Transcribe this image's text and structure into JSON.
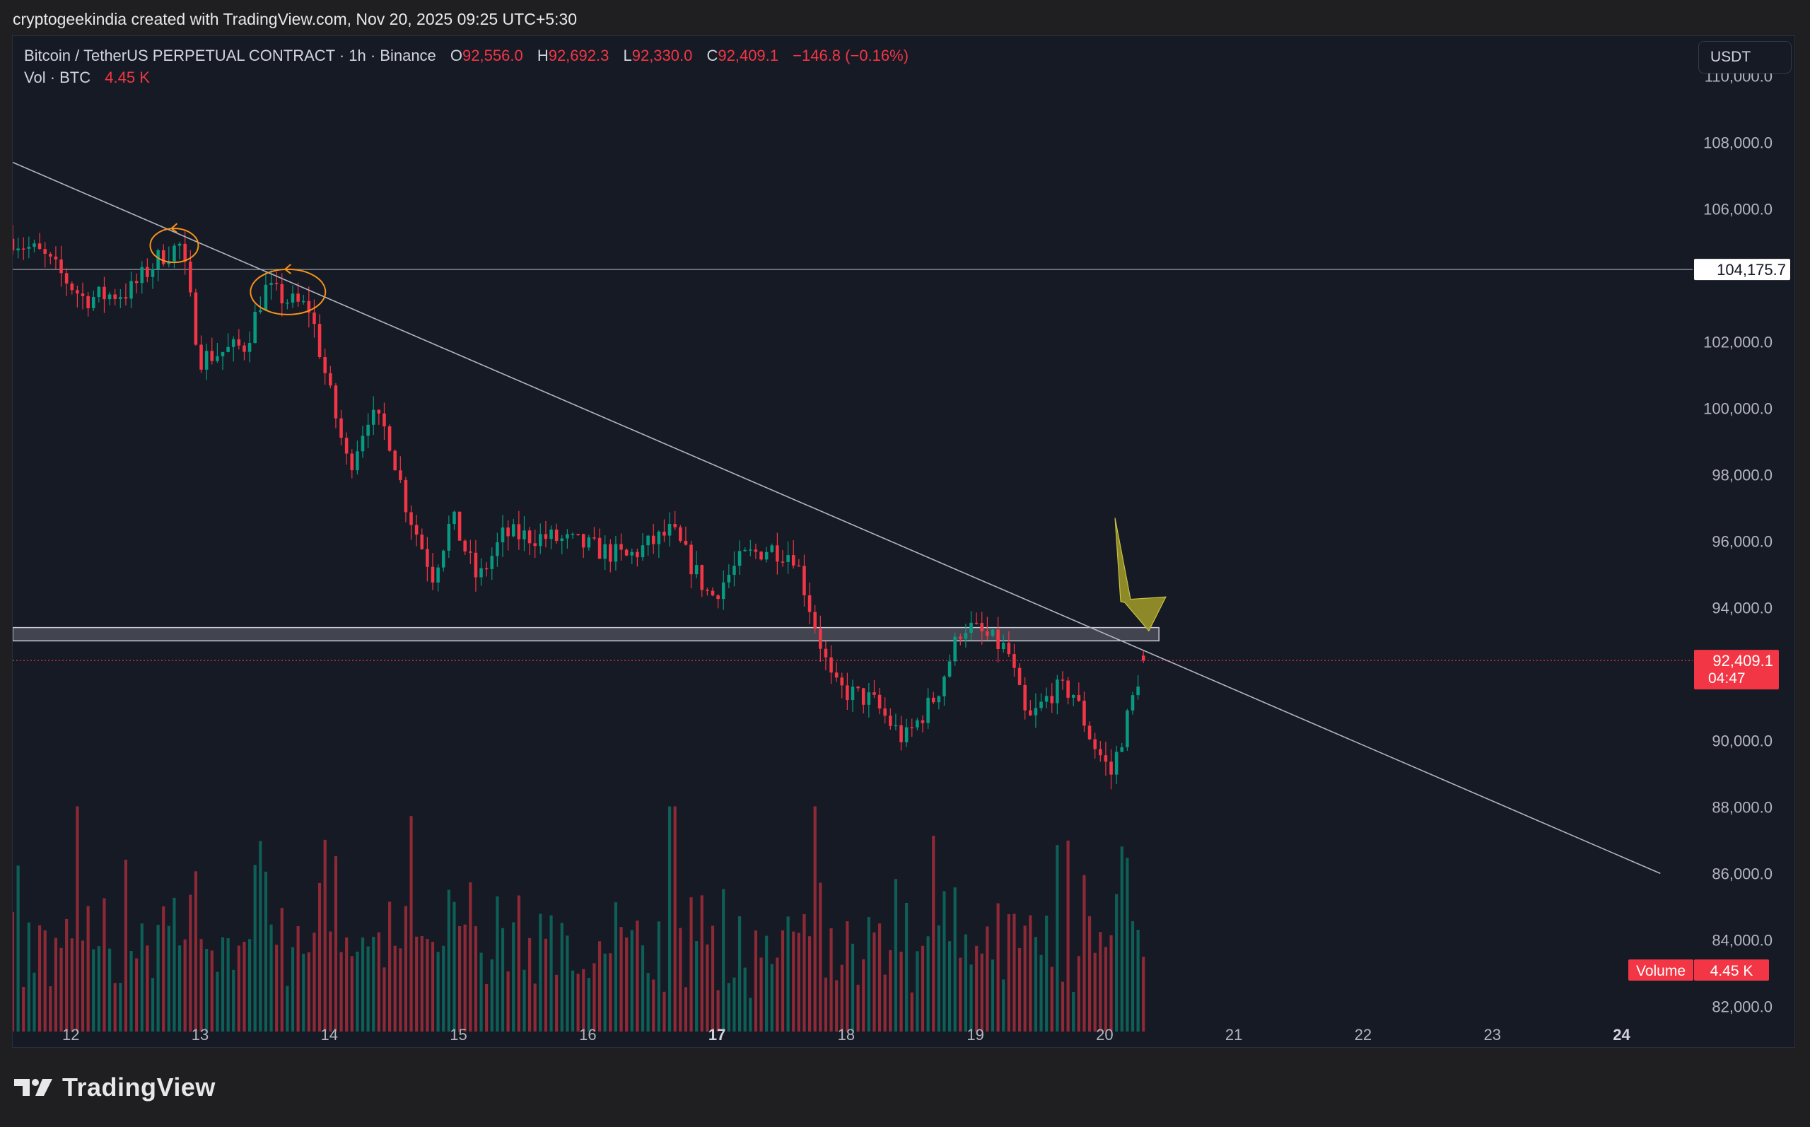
{
  "attribution": "cryptogeekindia created with TradingView.com, Nov 20, 2025 09:25 UTC+5:30",
  "legend": {
    "symbol": "Bitcoin / TetherUS PERPETUAL CONTRACT · 1h · Binance",
    "open_label": "O",
    "open": "92,556.0",
    "high_label": "H",
    "high": "92,692.3",
    "low_label": "L",
    "low": "92,330.0",
    "close_label": "C",
    "close": "92,409.1",
    "change": "−146.8 (−0.16%)",
    "vol_label": "Vol · BTC",
    "vol_value": "4.45 K"
  },
  "currency_button": "USDT",
  "footer": {
    "brand": "TradingView",
    "logo_icon": "tradingview-logo-icon"
  },
  "colors": {
    "background": "#161a25",
    "up": "#089981",
    "down": "#f23645",
    "annotation": "#f7931a",
    "arrow": "#9a962a",
    "line": "#b2b5be"
  },
  "chart_data": {
    "type": "candlestick",
    "timeframe": "1h",
    "xlim_days": [
      11.55,
      24.55
    ],
    "ylim": [
      81200,
      111200
    ],
    "y_ticks": [
      {
        "value": 110000,
        "label": "110,000.0"
      },
      {
        "value": 108000,
        "label": "108,000.0"
      },
      {
        "value": 106000,
        "label": "106,000.0"
      },
      {
        "value": 102000,
        "label": "102,000.0"
      },
      {
        "value": 100000,
        "label": "100,000.0"
      },
      {
        "value": 98000,
        "label": "98,000.0"
      },
      {
        "value": 96000,
        "label": "96,000.0"
      },
      {
        "value": 94000,
        "label": "94,000.0"
      },
      {
        "value": 90000,
        "label": "90,000.0"
      },
      {
        "value": 88000,
        "label": "88,000.0"
      },
      {
        "value": 86000,
        "label": "86,000.0"
      },
      {
        "value": 84000,
        "label": "84,000.0"
      },
      {
        "value": 82000,
        "label": "82,000.0"
      }
    ],
    "x_ticks": [
      {
        "value": 12,
        "label": "12",
        "bold": false
      },
      {
        "value": 13,
        "label": "13",
        "bold": false
      },
      {
        "value": 14,
        "label": "14",
        "bold": false
      },
      {
        "value": 15,
        "label": "15",
        "bold": false
      },
      {
        "value": 16,
        "label": "16",
        "bold": false
      },
      {
        "value": 17,
        "label": "17",
        "bold": true
      },
      {
        "value": 18,
        "label": "18",
        "bold": false
      },
      {
        "value": 19,
        "label": "19",
        "bold": false
      },
      {
        "value": 20,
        "label": "20",
        "bold": false
      },
      {
        "value": 21,
        "label": "21",
        "bold": false
      },
      {
        "value": 22,
        "label": "22",
        "bold": false
      },
      {
        "value": 23,
        "label": "23",
        "bold": false
      },
      {
        "value": 24,
        "label": "24",
        "bold": true
      }
    ],
    "anchor_path": [
      [
        11.55,
        105100
      ],
      [
        11.78,
        104600
      ],
      [
        12.1,
        103300
      ],
      [
        12.45,
        103500
      ],
      [
        12.7,
        104600
      ],
      [
        12.85,
        104900
      ],
      [
        13.0,
        101500
      ],
      [
        13.35,
        101900
      ],
      [
        13.5,
        103600
      ],
      [
        13.7,
        103200
      ],
      [
        13.85,
        103000
      ],
      [
        14.0,
        100500
      ],
      [
        14.15,
        98200
      ],
      [
        14.3,
        99800
      ],
      [
        14.45,
        99300
      ],
      [
        14.6,
        97000
      ],
      [
        14.8,
        95000
      ],
      [
        14.95,
        96700
      ],
      [
        15.15,
        94800
      ],
      [
        15.35,
        96200
      ],
      [
        15.7,
        96100
      ],
      [
        15.95,
        95900
      ],
      [
        16.3,
        95500
      ],
      [
        16.65,
        96300
      ],
      [
        16.95,
        94300
      ],
      [
        17.2,
        95500
      ],
      [
        17.4,
        95800
      ],
      [
        17.6,
        95600
      ],
      [
        17.9,
        91600
      ],
      [
        18.2,
        91200
      ],
      [
        18.45,
        90000
      ],
      [
        18.7,
        91400
      ],
      [
        18.9,
        93500
      ],
      [
        19.05,
        93200
      ],
      [
        19.25,
        92700
      ],
      [
        19.4,
        90500
      ],
      [
        19.6,
        91500
      ],
      [
        19.75,
        91500
      ],
      [
        19.9,
        90000
      ],
      [
        20.05,
        89000
      ],
      [
        20.2,
        91000
      ],
      [
        20.3,
        92500
      ]
    ],
    "volume_scale_max_k": 13.8,
    "last_volume_k": 4.45,
    "horizontal_line": {
      "price": 104175.7,
      "label": "104,175.7"
    },
    "support_zone": {
      "from": 93000,
      "to": 93400,
      "x_end_day": 20.42
    },
    "trendline": {
      "from": {
        "day": 11.55,
        "price": 107400
      },
      "to": {
        "day": 24.3,
        "price": 86000
      }
    },
    "current_price": {
      "value": 92409.1,
      "label": "92,409.1",
      "countdown": "04:47"
    },
    "volume_badge": {
      "label": "Volume",
      "value": "4.45 K"
    },
    "annotations": [
      {
        "type": "ellipse",
        "day": 12.8,
        "price": 104900
      },
      {
        "type": "ellipse",
        "day": 13.68,
        "price": 103500
      },
      {
        "type": "arrow",
        "from": {
          "day": 20.08,
          "price": 96700
        },
        "to": {
          "day": 20.32,
          "price": 93300
        }
      }
    ]
  }
}
